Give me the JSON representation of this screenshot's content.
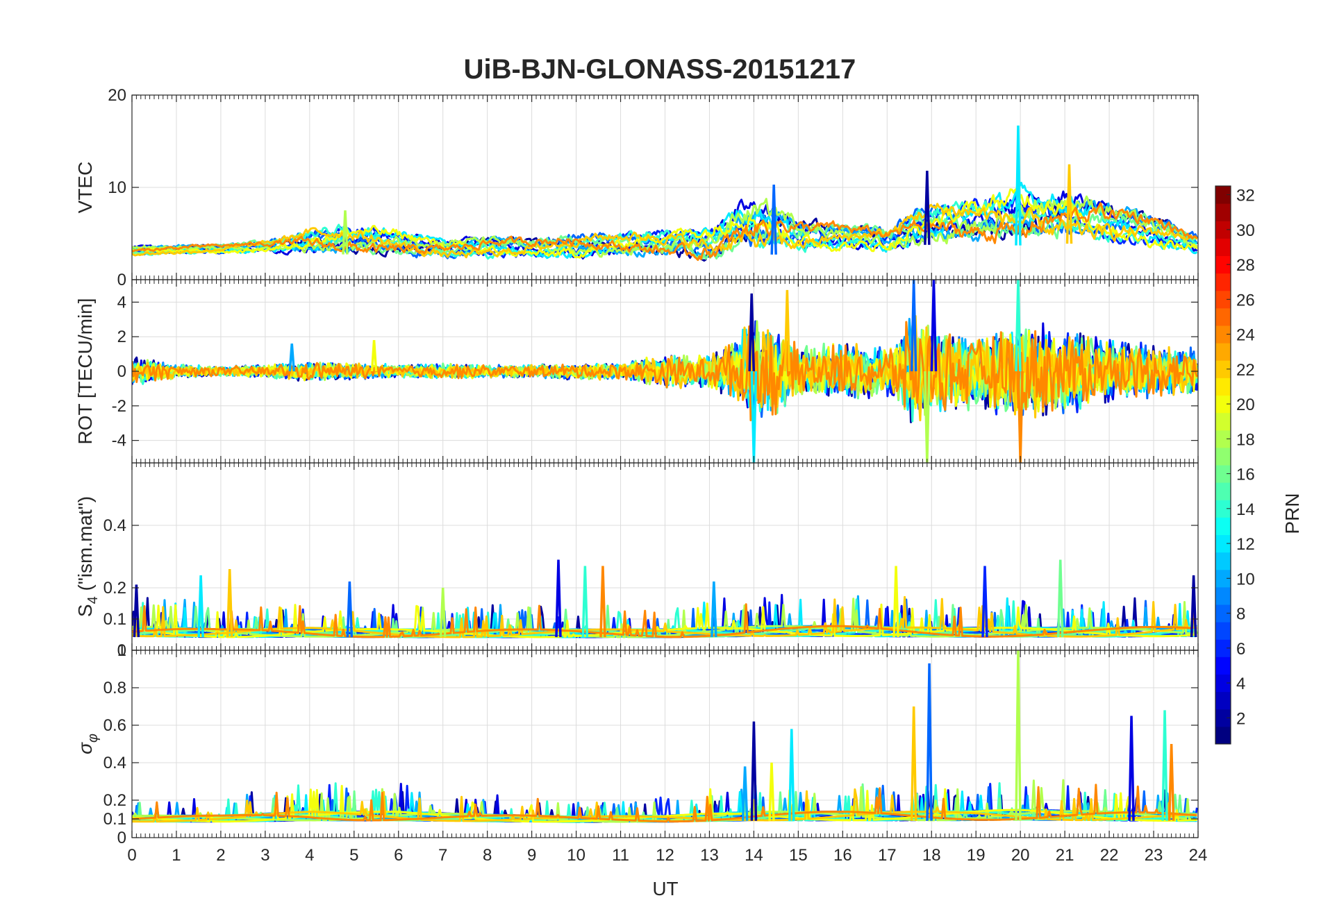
{
  "chart_data": {
    "type": "line",
    "title": "UiB-BJN-GLONASS-20151217",
    "xlabel": "UT",
    "x_range": [
      0,
      24
    ],
    "x_ticks": [
      "0",
      "1",
      "2",
      "3",
      "4",
      "5",
      "6",
      "7",
      "8",
      "9",
      "10",
      "11",
      "12",
      "13",
      "14",
      "15",
      "16",
      "17",
      "18",
      "19",
      "20",
      "21",
      "22",
      "23",
      "24"
    ],
    "panels": [
      {
        "id": "vtec",
        "ylabel": "VTEC",
        "ylim": [
          0,
          20
        ],
        "y_ticks": [
          {
            "v": 0,
            "label": "0"
          },
          {
            "v": 10,
            "label": "10"
          },
          {
            "v": 20,
            "label": "20"
          }
        ],
        "envelope": {
          "x": [
            0,
            1,
            2,
            3,
            4,
            5,
            6,
            7,
            8,
            9,
            10,
            11,
            12,
            13,
            13.5,
            14,
            14.5,
            15,
            16,
            17,
            17.6,
            18,
            19,
            20,
            21,
            22,
            23,
            24
          ],
          "low": [
            2.5,
            2.6,
            2.7,
            2.8,
            2.5,
            2.3,
            2.2,
            2.0,
            2.0,
            2.1,
            1.8,
            2.2,
            2.2,
            1.5,
            2.0,
            2.5,
            2.3,
            2.5,
            2.8,
            2.7,
            3.0,
            3.5,
            3.5,
            3.3,
            3.5,
            3.5,
            3.0,
            2.5
          ],
          "high": [
            3.8,
            3.9,
            4.0,
            4.5,
            6.0,
            6.5,
            5.8,
            4.8,
            5.0,
            4.8,
            5.5,
            5.5,
            6.0,
            6.5,
            9.0,
            9.5,
            9.0,
            7.0,
            6.5,
            6.0,
            8.5,
            9.0,
            9.5,
            11.0,
            10.5,
            9.0,
            7.5,
            5.0
          ]
        },
        "spikes": [
          {
            "x": 17.9,
            "y": 11.8
          },
          {
            "x": 19.95,
            "y": 16.7
          },
          {
            "x": 21.1,
            "y": 12.5
          },
          {
            "x": 14.45,
            "y": 10.3
          },
          {
            "x": 4.8,
            "y": 7.5
          }
        ]
      },
      {
        "id": "rot",
        "ylabel": "ROT [TECU/min]",
        "ylim": [
          -5.3,
          5.3
        ],
        "y_ticks": [
          {
            "v": -4,
            "label": "-4"
          },
          {
            "v": -2,
            "label": "-2"
          },
          {
            "v": 0,
            "label": "0"
          },
          {
            "v": 2,
            "label": "2"
          },
          {
            "v": 4,
            "label": "4"
          }
        ],
        "envelope": {
          "x": [
            0,
            1,
            2,
            3,
            4,
            5,
            6,
            7,
            8,
            9,
            10,
            11,
            12,
            13,
            13.5,
            14,
            14.5,
            15,
            16,
            17,
            17.6,
            18,
            19,
            20,
            21,
            22,
            23,
            24
          ],
          "amp": [
            0.9,
            0.4,
            0.3,
            0.4,
            0.6,
            0.5,
            0.4,
            0.5,
            0.4,
            0.4,
            0.5,
            0.5,
            1.0,
            1.0,
            1.8,
            3.2,
            3.0,
            1.5,
            1.8,
            1.6,
            3.5,
            2.8,
            2.2,
            3.0,
            2.6,
            2.0,
            1.6,
            1.4
          ]
        },
        "spikes": [
          {
            "x": 13.95,
            "y": 4.5
          },
          {
            "x": 14.0,
            "y": -5.3
          },
          {
            "x": 14.75,
            "y": 4.7
          },
          {
            "x": 17.6,
            "y": 5.3
          },
          {
            "x": 17.9,
            "y": -5.3
          },
          {
            "x": 18.05,
            "y": 5.3
          },
          {
            "x": 19.95,
            "y": 5.3
          },
          {
            "x": 20.0,
            "y": -5.3
          },
          {
            "x": 3.6,
            "y": 1.6
          },
          {
            "x": 5.45,
            "y": 1.8
          }
        ]
      },
      {
        "id": "s4",
        "ylabel": "S4 (\"ism.mat\")",
        "ylim": [
          0,
          0.6
        ],
        "y_ticks": [
          {
            "v": 0,
            "label": "0"
          },
          {
            "v": 0.1,
            "label": "0.1"
          },
          {
            "v": 0.2,
            "label": "0.2"
          },
          {
            "v": 0.4,
            "label": "0.4"
          }
        ],
        "envelope": {
          "x": [
            0,
            2,
            4,
            6,
            8,
            10,
            12,
            14,
            16,
            18,
            20,
            22,
            24
          ],
          "low": [
            0.03,
            0.03,
            0.03,
            0.03,
            0.03,
            0.03,
            0.03,
            0.03,
            0.03,
            0.03,
            0.03,
            0.03,
            0.03
          ],
          "high": [
            0.12,
            0.1,
            0.11,
            0.1,
            0.1,
            0.1,
            0.1,
            0.12,
            0.12,
            0.11,
            0.11,
            0.11,
            0.12
          ]
        },
        "spikes": [
          {
            "x": 0.1,
            "y": 0.21
          },
          {
            "x": 1.55,
            "y": 0.24
          },
          {
            "x": 2.2,
            "y": 0.26
          },
          {
            "x": 4.9,
            "y": 0.22
          },
          {
            "x": 7.0,
            "y": 0.2
          },
          {
            "x": 9.6,
            "y": 0.29
          },
          {
            "x": 10.2,
            "y": 0.27
          },
          {
            "x": 10.6,
            "y": 0.27
          },
          {
            "x": 13.1,
            "y": 0.22
          },
          {
            "x": 17.2,
            "y": 0.27
          },
          {
            "x": 19.2,
            "y": 0.27
          },
          {
            "x": 20.9,
            "y": 0.29
          },
          {
            "x": 23.9,
            "y": 0.24
          }
        ]
      },
      {
        "id": "sigma",
        "ylabel": "σφ",
        "ylim": [
          0,
          1
        ],
        "y_ticks": [
          {
            "v": 0,
            "label": "0"
          },
          {
            "v": 0.1,
            "label": "0.1"
          },
          {
            "v": 0.2,
            "label": "0.2"
          },
          {
            "v": 0.4,
            "label": "0.4"
          },
          {
            "v": 0.6,
            "label": "0.6"
          },
          {
            "v": 0.8,
            "label": "0.8"
          },
          {
            "v": 1,
            "label": "1"
          }
        ],
        "envelope": {
          "x": [
            0,
            2,
            4,
            6,
            8,
            10,
            12,
            14,
            16,
            18,
            20,
            22,
            24
          ],
          "low": [
            0.07,
            0.07,
            0.07,
            0.07,
            0.07,
            0.07,
            0.07,
            0.07,
            0.07,
            0.07,
            0.07,
            0.07,
            0.07
          ],
          "high": [
            0.16,
            0.16,
            0.2,
            0.2,
            0.17,
            0.15,
            0.16,
            0.2,
            0.2,
            0.2,
            0.22,
            0.2,
            0.18
          ]
        },
        "spikes": [
          {
            "x": 14.0,
            "y": 0.62
          },
          {
            "x": 14.85,
            "y": 0.58
          },
          {
            "x": 17.6,
            "y": 0.7
          },
          {
            "x": 17.95,
            "y": 0.93
          },
          {
            "x": 19.95,
            "y": 1.0
          },
          {
            "x": 22.5,
            "y": 0.65
          },
          {
            "x": 23.25,
            "y": 0.68
          },
          {
            "x": 23.4,
            "y": 0.5
          },
          {
            "x": 13.8,
            "y": 0.38
          },
          {
            "x": 14.4,
            "y": 0.4
          }
        ]
      }
    ],
    "colorbar": {
      "label": "PRN",
      "range": [
        1,
        32
      ],
      "ticks": [
        {
          "v": 2,
          "label": "2"
        },
        {
          "v": 4,
          "label": "4"
        },
        {
          "v": 6,
          "label": "6"
        },
        {
          "v": 8,
          "label": "8"
        },
        {
          "v": 10,
          "label": "10"
        },
        {
          "v": 12,
          "label": "12"
        },
        {
          "v": 14,
          "label": "14"
        },
        {
          "v": 16,
          "label": "16"
        },
        {
          "v": 18,
          "label": "18"
        },
        {
          "v": 20,
          "label": "20"
        },
        {
          "v": 22,
          "label": "22"
        },
        {
          "v": 24,
          "label": "24"
        },
        {
          "v": 26,
          "label": "26"
        },
        {
          "v": 28,
          "label": "28"
        },
        {
          "v": 30,
          "label": "30"
        },
        {
          "v": 32,
          "label": "32"
        }
      ],
      "colormap": "jet"
    },
    "series_prns": [
      2,
      4,
      6,
      8,
      10,
      12,
      14,
      16,
      18,
      20,
      22,
      24
    ],
    "grid": true
  }
}
